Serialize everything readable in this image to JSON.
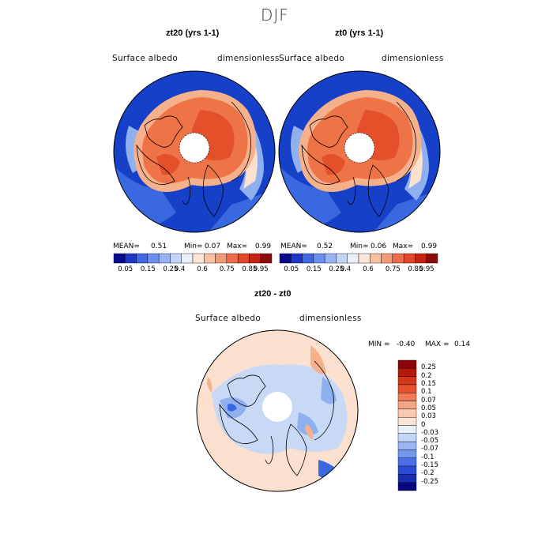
{
  "figure": {
    "title": "DJF"
  },
  "panels": [
    {
      "title": "zt20 (yrs 1-1)",
      "variable": "Surface albedo",
      "units": "dimensionless",
      "stats": {
        "mean_label": "MEAN=",
        "mean": "0.51",
        "min_label": "Min=",
        "min": "0.07",
        "max_label": "Max=",
        "max": "0.99"
      }
    },
    {
      "title": "zt0 (yrs 1-1)",
      "variable": "Surface albedo",
      "units": "dimensionless",
      "stats": {
        "mean_label": "MEAN=",
        "mean": "0.52",
        "min_label": "Min=",
        "min": "0.06",
        "max_label": "Max=",
        "max": "0.99"
      }
    },
    {
      "title": "zt20 - zt0",
      "variable": "Surface albedo",
      "units": "dimensionless",
      "stats": {
        "min_label": "MIN =",
        "min": "-0.40",
        "max_label": "MAX =",
        "max": "0.14"
      }
    }
  ],
  "colorbar_abs": {
    "colors": [
      "#0a0a8c",
      "#1f37c8",
      "#3f68e2",
      "#6b8eec",
      "#98b2f2",
      "#c3d5f7",
      "#e9f0fa",
      "#fce4d6",
      "#f8c0a3",
      "#f39b78",
      "#ec6d4c",
      "#e0482a",
      "#c52414",
      "#8b0b08"
    ],
    "labels": [
      "0.05",
      "0.15",
      "0.25",
      "0.4",
      "0.6",
      "0.75",
      "0.85",
      "0.95"
    ]
  },
  "colorbar_diff": {
    "colors": [
      "#08087e",
      "#1a2fb0",
      "#2a4bd6",
      "#4a6ee6",
      "#7396ee",
      "#9ab7f4",
      "#c4d7f8",
      "#eaf0fa",
      "#fce4d6",
      "#f9caaf",
      "#f4a584",
      "#ef7a54",
      "#e5522c",
      "#d43618",
      "#b31a0c",
      "#8b0608"
    ],
    "labels": [
      "0.25",
      "0.2",
      "0.15",
      "0.1",
      "0.07",
      "0.05",
      "0.03",
      "0",
      "-0.03",
      "-0.05",
      "-0.07",
      "-0.1",
      "-0.15",
      "-0.2",
      "-0.25"
    ]
  },
  "map_colors": {
    "deep_blue": "#1740c8",
    "mid_blue": "#3a68e0",
    "light_blue": "#8fb0ef",
    "pale_blue": "#c8d9f6",
    "pale_orange": "#fbe0cf",
    "light_orange": "#f5b08c",
    "orange": "#ee7448",
    "red_orange": "#e3502a",
    "pole_hole": "#ffffff"
  }
}
